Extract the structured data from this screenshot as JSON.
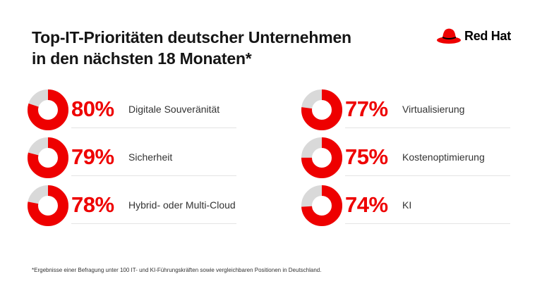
{
  "title_line1": "Top-IT-Prioritäten deutscher Unternehmen",
  "title_line2": "in den nächsten 18 Monaten*",
  "logo": {
    "text": "Red Hat",
    "icon": "red-hat-fedora-icon"
  },
  "colors": {
    "accent": "#ee0000",
    "remainder": "#d9d9d9",
    "text": "#151515"
  },
  "chart_data": {
    "type": "donut",
    "categories": [
      "Digitale Souveränität",
      "Sicherheit",
      "Hybrid- oder Multi-Cloud",
      "Virtualisierung",
      "Kostenoptimierung",
      "KI"
    ],
    "values": [
      80,
      79,
      78,
      77,
      75,
      74
    ],
    "labels": [
      "80%",
      "79%",
      "78%",
      "77%",
      "75%",
      "74%"
    ],
    "unit": "%"
  },
  "footnote": "*Ergebnisse einer Befragung unter 100 IT- und KI-Führungskräften sowie vergleichbaren Positionen in Deutschland."
}
